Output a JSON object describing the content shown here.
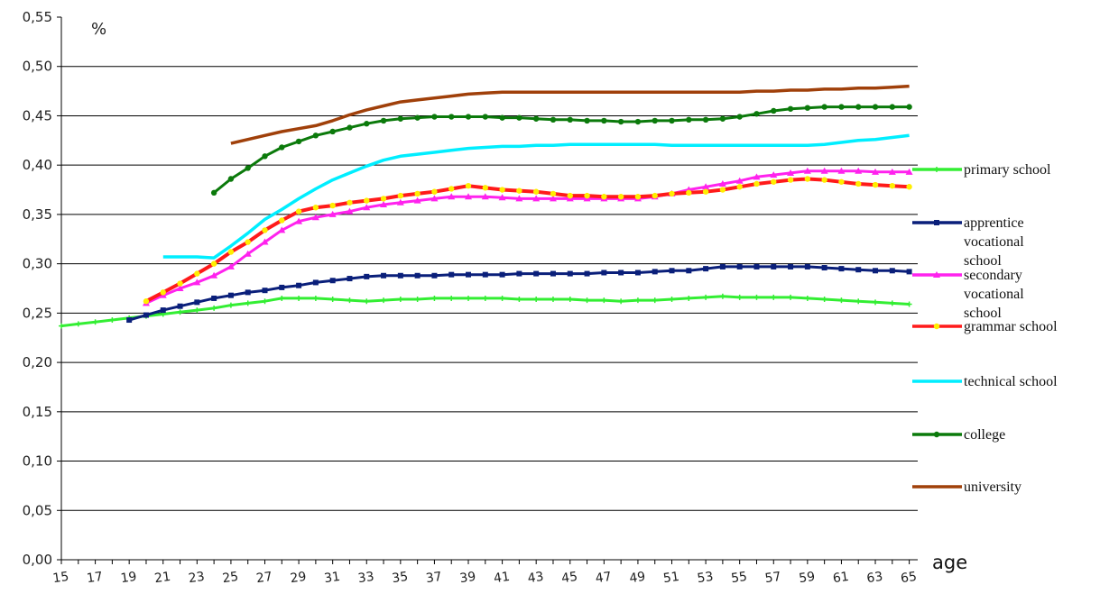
{
  "chart_data": {
    "type": "line",
    "ylabel": "%",
    "xlabel": "age",
    "ylim": [
      0,
      0.55
    ],
    "yticks": [
      "0,00",
      "0,05",
      "0,10",
      "0,15",
      "0,20",
      "0,25",
      "0,30",
      "0,35",
      "0,40",
      "0,45",
      "0,50",
      "0,55"
    ],
    "x": [
      15,
      16,
      17,
      18,
      19,
      20,
      21,
      22,
      23,
      24,
      25,
      26,
      27,
      28,
      29,
      30,
      31,
      32,
      33,
      34,
      35,
      36,
      37,
      38,
      39,
      40,
      41,
      42,
      43,
      44,
      45,
      46,
      47,
      48,
      49,
      50,
      51,
      52,
      53,
      54,
      55,
      56,
      57,
      58,
      59,
      60,
      61,
      62,
      63,
      64,
      65
    ],
    "xticks": [
      "15",
      "17",
      "19",
      "21",
      "23",
      "25",
      "27",
      "29",
      "31",
      "33",
      "35",
      "37",
      "39",
      "41",
      "43",
      "45",
      "47",
      "49",
      "51",
      "53",
      "55",
      "57",
      "59",
      "61",
      "63",
      "65"
    ],
    "grid": true,
    "legend_position": "right",
    "series": [
      {
        "name": "primary school",
        "color": "#33ee33",
        "marker": "plus",
        "values": [
          0.237,
          0.239,
          0.241,
          0.243,
          0.245,
          0.247,
          0.249,
          0.251,
          0.253,
          0.255,
          0.258,
          0.26,
          0.262,
          0.265,
          0.265,
          0.265,
          0.264,
          0.263,
          0.262,
          0.263,
          0.264,
          0.264,
          0.265,
          0.265,
          0.265,
          0.265,
          0.265,
          0.264,
          0.264,
          0.264,
          0.264,
          0.263,
          0.263,
          0.262,
          0.263,
          0.263,
          0.264,
          0.265,
          0.266,
          0.267,
          0.266,
          0.266,
          0.266,
          0.266,
          0.265,
          0.264,
          0.263,
          0.262,
          0.261,
          0.26,
          0.259
        ]
      },
      {
        "name": "apprentice vocational school",
        "color": "#0a1f7a",
        "marker": "square",
        "values": [
          null,
          null,
          null,
          null,
          0.243,
          0.248,
          0.253,
          0.257,
          0.261,
          0.265,
          0.268,
          0.271,
          0.273,
          0.276,
          0.278,
          0.281,
          0.283,
          0.285,
          0.287,
          0.288,
          0.288,
          0.288,
          0.288,
          0.289,
          0.289,
          0.289,
          0.289,
          0.29,
          0.29,
          0.29,
          0.29,
          0.29,
          0.291,
          0.291,
          0.291,
          0.292,
          0.293,
          0.293,
          0.295,
          0.297,
          0.297,
          0.297,
          0.297,
          0.297,
          0.297,
          0.296,
          0.295,
          0.294,
          0.293,
          0.293,
          0.292
        ]
      },
      {
        "name": "secondary vocational school",
        "color": "#ff22ee",
        "marker": "triangle",
        "values": [
          null,
          null,
          null,
          null,
          null,
          0.26,
          0.268,
          0.275,
          0.281,
          0.288,
          0.297,
          0.31,
          0.322,
          0.334,
          0.343,
          0.347,
          0.35,
          0.353,
          0.357,
          0.36,
          0.362,
          0.364,
          0.366,
          0.368,
          0.368,
          0.368,
          0.367,
          0.366,
          0.366,
          0.366,
          0.366,
          0.366,
          0.366,
          0.366,
          0.366,
          0.368,
          0.371,
          0.375,
          0.378,
          0.381,
          0.384,
          0.388,
          0.39,
          0.392,
          0.394,
          0.394,
          0.394,
          0.394,
          0.393,
          0.393,
          0.393
        ]
      },
      {
        "name": "grammar school",
        "color": "#ff1a1a",
        "marker": "circle-yellow",
        "values": [
          null,
          null,
          null,
          null,
          null,
          0.262,
          0.271,
          0.28,
          0.29,
          0.3,
          0.312,
          0.322,
          0.334,
          0.344,
          0.353,
          0.357,
          0.359,
          0.362,
          0.364,
          0.366,
          0.369,
          0.371,
          0.373,
          0.376,
          0.379,
          0.377,
          0.375,
          0.374,
          0.373,
          0.371,
          0.369,
          0.369,
          0.368,
          0.368,
          0.368,
          0.369,
          0.371,
          0.372,
          0.373,
          0.375,
          0.378,
          0.381,
          0.383,
          0.385,
          0.386,
          0.385,
          0.383,
          0.381,
          0.38,
          0.379,
          0.378
        ]
      },
      {
        "name": "technical school",
        "color": "#00eeff",
        "marker": "none",
        "values": [
          null,
          null,
          null,
          null,
          null,
          null,
          0.307,
          0.307,
          0.307,
          0.306,
          0.318,
          0.331,
          0.345,
          0.355,
          0.366,
          0.376,
          0.385,
          0.392,
          0.399,
          0.405,
          0.409,
          0.411,
          0.413,
          0.415,
          0.417,
          0.418,
          0.419,
          0.419,
          0.42,
          0.42,
          0.421,
          0.421,
          0.421,
          0.421,
          0.421,
          0.421,
          0.42,
          0.42,
          0.42,
          0.42,
          0.42,
          0.42,
          0.42,
          0.42,
          0.42,
          0.421,
          0.423,
          0.425,
          0.426,
          0.428,
          0.43
        ]
      },
      {
        "name": "college",
        "color": "#0b7a0b",
        "marker": "dot",
        "values": [
          null,
          null,
          null,
          null,
          null,
          null,
          null,
          null,
          null,
          0.372,
          0.386,
          0.397,
          0.409,
          0.418,
          0.424,
          0.43,
          0.434,
          0.438,
          0.442,
          0.445,
          0.447,
          0.448,
          0.449,
          0.449,
          0.449,
          0.449,
          0.448,
          0.448,
          0.447,
          0.446,
          0.446,
          0.445,
          0.445,
          0.444,
          0.444,
          0.445,
          0.445,
          0.446,
          0.446,
          0.447,
          0.449,
          0.452,
          0.455,
          0.457,
          0.458,
          0.459,
          0.459,
          0.459,
          0.459,
          0.459,
          0.459
        ]
      },
      {
        "name": "university",
        "color": "#a0400a",
        "marker": "none",
        "values": [
          null,
          null,
          null,
          null,
          null,
          null,
          null,
          null,
          null,
          null,
          0.422,
          0.426,
          0.43,
          0.434,
          0.437,
          0.44,
          0.445,
          0.451,
          0.456,
          0.46,
          0.464,
          0.466,
          0.468,
          0.47,
          0.472,
          0.473,
          0.474,
          0.474,
          0.474,
          0.474,
          0.474,
          0.474,
          0.474,
          0.474,
          0.474,
          0.474,
          0.474,
          0.474,
          0.474,
          0.474,
          0.474,
          0.475,
          0.475,
          0.476,
          0.476,
          0.477,
          0.477,
          0.478,
          0.478,
          0.479,
          0.48
        ]
      }
    ]
  }
}
